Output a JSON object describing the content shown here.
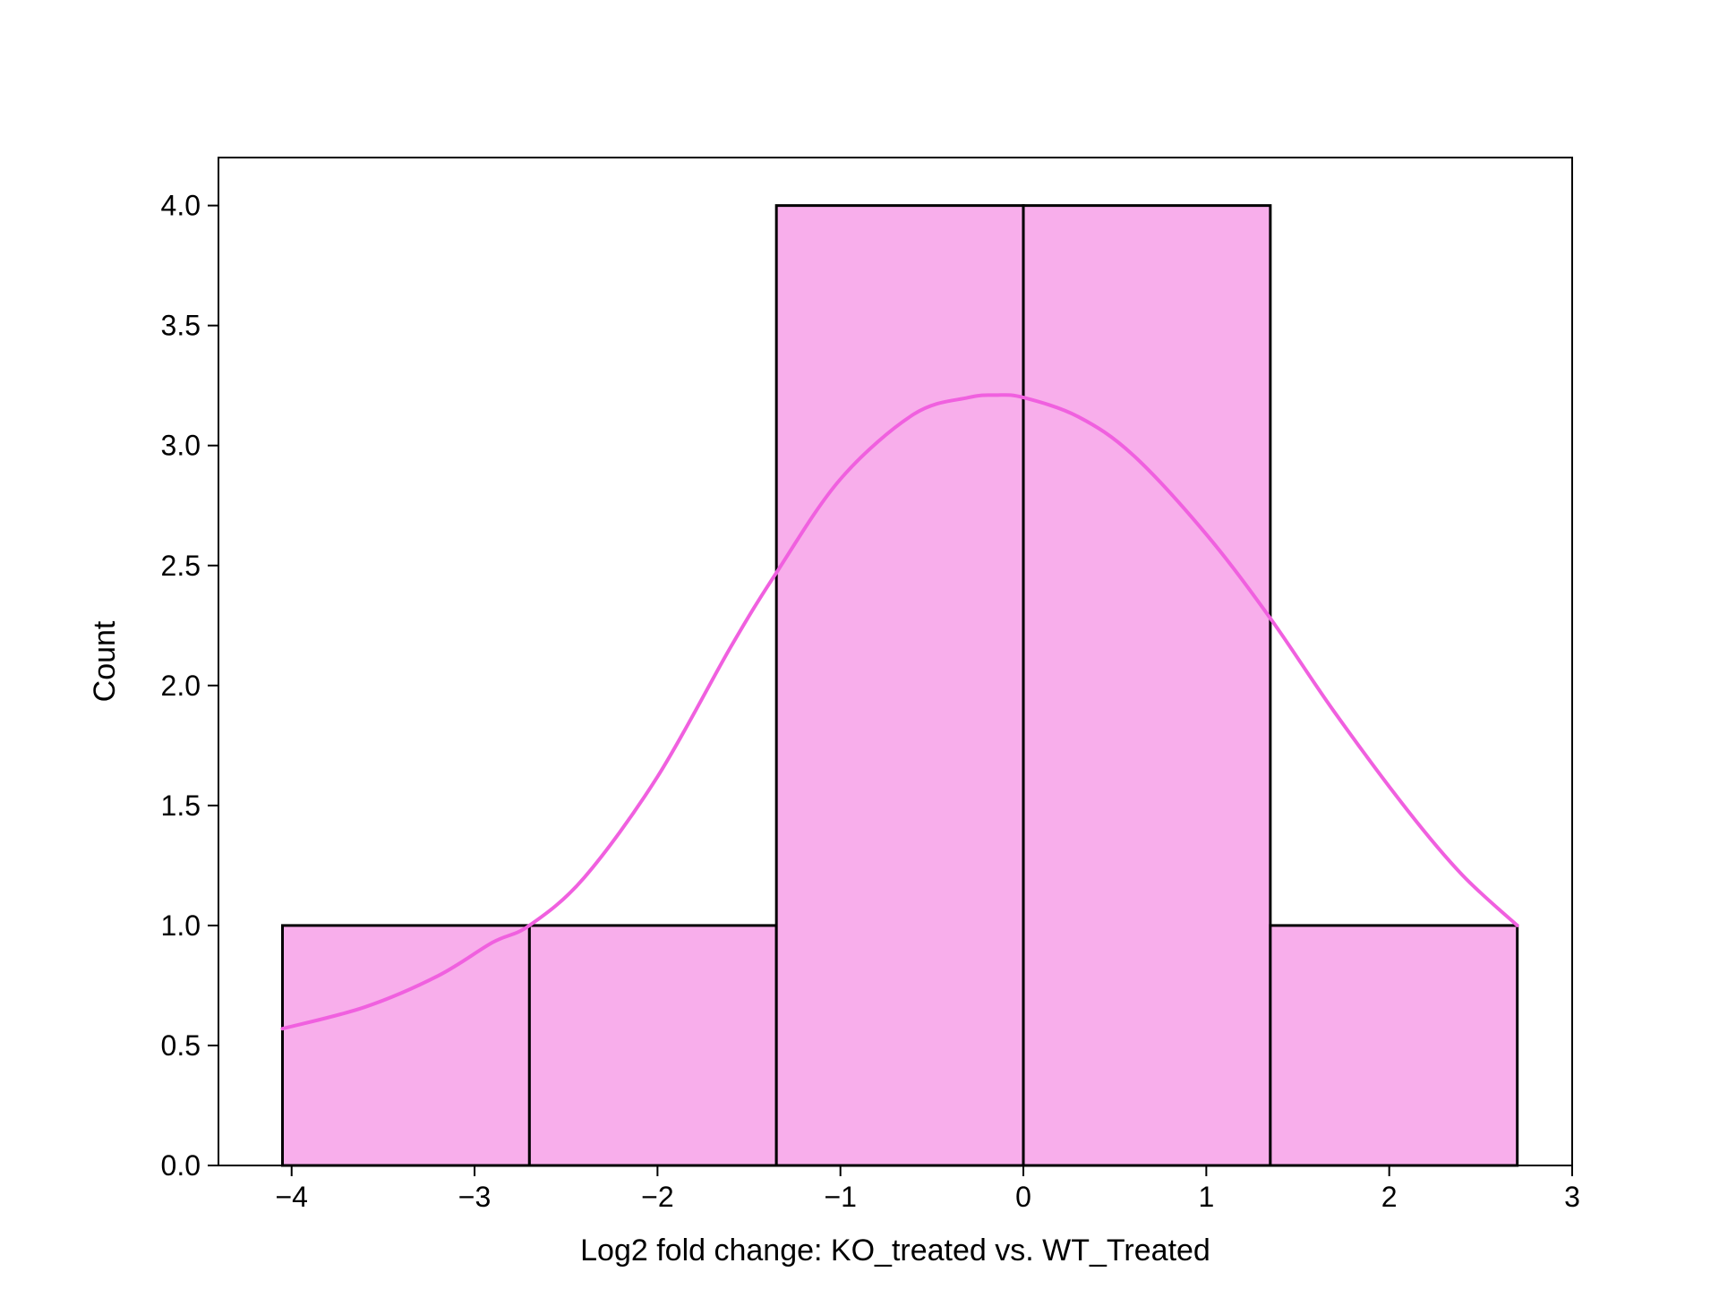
{
  "chart_data": {
    "type": "histogram",
    "title": "",
    "xlabel": "Log2 fold change: KO_treated vs. WT_Treated",
    "ylabel": "Count",
    "xlim": [
      -4.4,
      3.0
    ],
    "ylim": [
      0,
      4.2
    ],
    "xticks": [
      -4,
      -3,
      -2,
      -1,
      0,
      1,
      2,
      3
    ],
    "xtick_labels": [
      "−4",
      "−3",
      "−2",
      "−1",
      "0",
      "1",
      "2",
      "3"
    ],
    "yticks": [
      0,
      0.5,
      1,
      1.5,
      2,
      2.5,
      3,
      3.5,
      4
    ],
    "ytick_labels": [
      "0.0",
      "0.5",
      "1.0",
      "1.5",
      "2.0",
      "2.5",
      "3.0",
      "3.5",
      "4.0"
    ],
    "bins": [
      {
        "start": -4.05,
        "end": -2.7,
        "count": 1
      },
      {
        "start": -2.7,
        "end": -1.35,
        "count": 1
      },
      {
        "start": -1.35,
        "end": 0.0,
        "count": 4
      },
      {
        "start": 0.0,
        "end": 1.35,
        "count": 4
      },
      {
        "start": 1.35,
        "end": 2.7,
        "count": 1
      }
    ],
    "kde": {
      "x": [
        -4.05,
        -3.6,
        -3.2,
        -2.9,
        -2.7,
        -2.4,
        -2.0,
        -1.6,
        -1.35,
        -1.0,
        -0.6,
        -0.3,
        -0.15,
        0.0,
        0.3,
        0.6,
        1.0,
        1.35,
        1.7,
        2.1,
        2.4,
        2.7
      ],
      "y": [
        0.57,
        0.66,
        0.79,
        0.93,
        1.0,
        1.2,
        1.62,
        2.16,
        2.47,
        2.86,
        3.13,
        3.2,
        3.21,
        3.2,
        3.12,
        2.96,
        2.63,
        2.28,
        1.89,
        1.48,
        1.21,
        1.0
      ]
    },
    "bar_fill": "#f8aeeb",
    "bar_edge": "#000000",
    "kde_color": "#f060df",
    "grid": false,
    "legend": "none"
  }
}
